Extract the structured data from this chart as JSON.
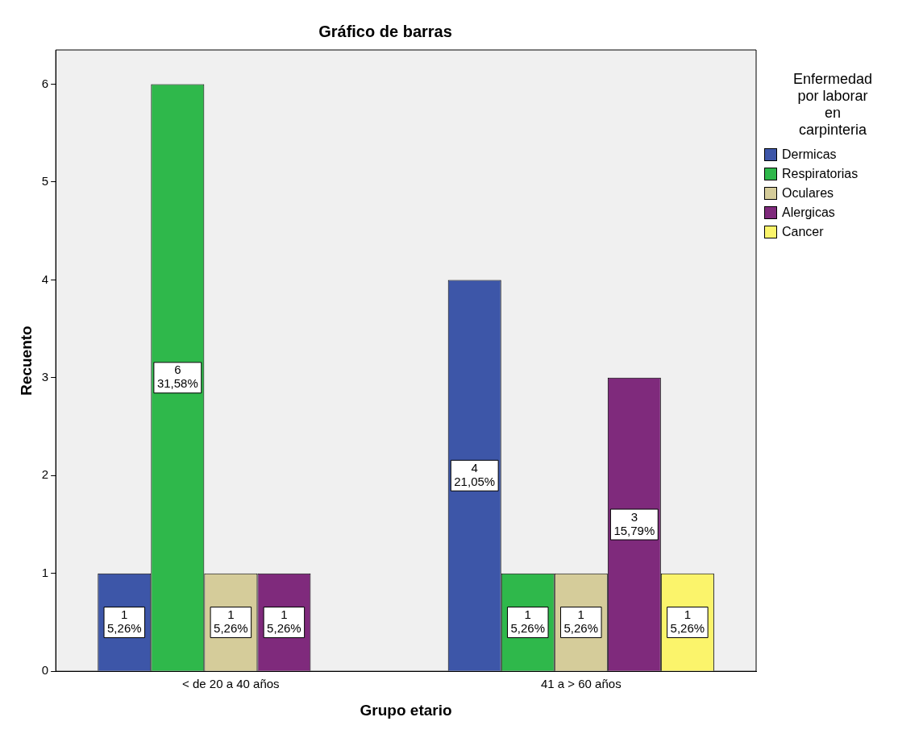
{
  "chart_data": {
    "type": "bar",
    "title": "Gráfico de barras",
    "xlabel": "Grupo etario",
    "ylabel": "Recuento",
    "legend_title": "Enfermedad por laborar en carpinteria",
    "legend": "right",
    "categories": [
      "< de 20 a 40 años",
      "41 a > 60 años"
    ],
    "series": [
      {
        "name": "Dermicas",
        "color": "#3d56a8",
        "values": [
          1,
          4
        ],
        "value_labels": [
          "1\n5,26%",
          "4\n21,05%"
        ]
      },
      {
        "name": "Respiratorias",
        "color": "#2fb84b",
        "values": [
          6,
          1
        ],
        "value_labels": [
          "6\n31,58%",
          "1\n5,26%"
        ]
      },
      {
        "name": "Oculares",
        "color": "#d5cc9a",
        "values": [
          1,
          1
        ],
        "value_labels": [
          "1\n5,26%",
          "1\n5,26%"
        ]
      },
      {
        "name": "Alergicas",
        "color": "#7f2a7c",
        "values": [
          1,
          3
        ],
        "value_labels": [
          "1\n5,26%",
          "3\n15,79%"
        ]
      },
      {
        "name": "Cancer",
        "color": "#fbf46b",
        "values": [
          null,
          1
        ],
        "value_labels": [
          null,
          "1\n5,26%"
        ]
      }
    ],
    "ylim": [
      0,
      6.35
    ],
    "yticks": [
      0,
      1,
      2,
      3,
      4,
      5,
      6
    ],
    "grid": false
  }
}
